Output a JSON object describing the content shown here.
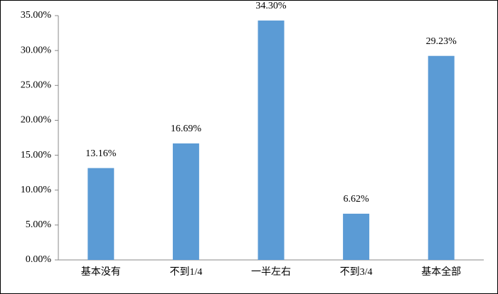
{
  "chart_data": {
    "type": "bar",
    "categories": [
      "基本没有",
      "不到1/4",
      "一半左右",
      "不到3/4",
      "基本全部"
    ],
    "values": [
      13.16,
      16.69,
      34.3,
      6.62,
      29.23
    ],
    "value_labels": [
      "13.16%",
      "16.69%",
      "34.30%",
      "6.62%",
      "29.23%"
    ],
    "color": "#5b9bd5",
    "ylim": [
      0,
      35
    ],
    "yticks": [
      {
        "value": 0,
        "label": "0.00%"
      },
      {
        "value": 5,
        "label": "5.00%"
      },
      {
        "value": 10,
        "label": "10.00%"
      },
      {
        "value": 15,
        "label": "15.00%"
      },
      {
        "value": 20,
        "label": "20.00%"
      },
      {
        "value": 25,
        "label": "25.00%"
      },
      {
        "value": 30,
        "label": "30.00%"
      },
      {
        "value": 35,
        "label": "35.00%"
      }
    ],
    "grid": false
  }
}
